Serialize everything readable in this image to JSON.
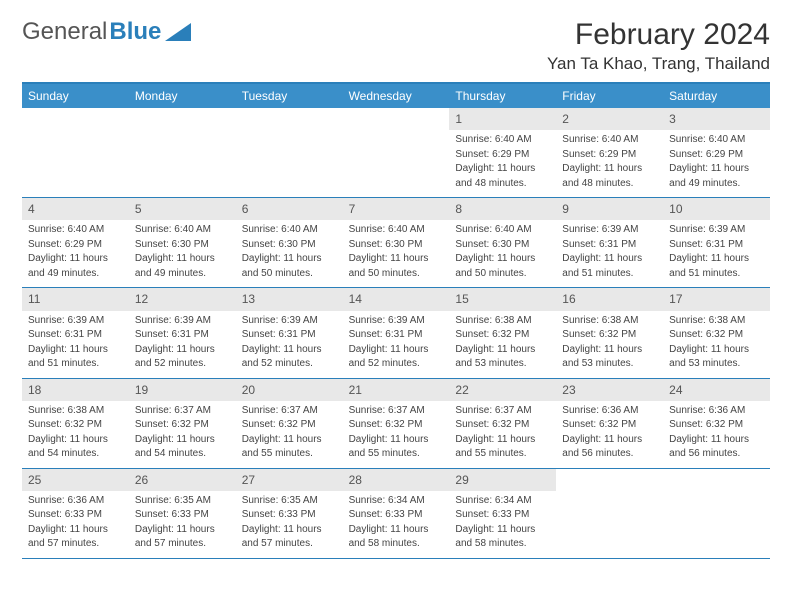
{
  "brand": {
    "part1": "General",
    "part2": "Blue"
  },
  "title": "February 2024",
  "location": "Yan Ta Khao, Trang, Thailand",
  "colors": {
    "header_bg": "#3a8fc9",
    "border": "#2a7fba",
    "daynum_bg": "#e8e8e8",
    "text": "#333333",
    "brand_gray": "#555555",
    "brand_blue": "#2a7fba"
  },
  "weekdays": [
    "Sunday",
    "Monday",
    "Tuesday",
    "Wednesday",
    "Thursday",
    "Friday",
    "Saturday"
  ],
  "weeks": [
    [
      {
        "day": "",
        "sunrise": "",
        "sunset": "",
        "daylight1": "",
        "daylight2": ""
      },
      {
        "day": "",
        "sunrise": "",
        "sunset": "",
        "daylight1": "",
        "daylight2": ""
      },
      {
        "day": "",
        "sunrise": "",
        "sunset": "",
        "daylight1": "",
        "daylight2": ""
      },
      {
        "day": "",
        "sunrise": "",
        "sunset": "",
        "daylight1": "",
        "daylight2": ""
      },
      {
        "day": "1",
        "sunrise": "Sunrise: 6:40 AM",
        "sunset": "Sunset: 6:29 PM",
        "daylight1": "Daylight: 11 hours",
        "daylight2": "and 48 minutes."
      },
      {
        "day": "2",
        "sunrise": "Sunrise: 6:40 AM",
        "sunset": "Sunset: 6:29 PM",
        "daylight1": "Daylight: 11 hours",
        "daylight2": "and 48 minutes."
      },
      {
        "day": "3",
        "sunrise": "Sunrise: 6:40 AM",
        "sunset": "Sunset: 6:29 PM",
        "daylight1": "Daylight: 11 hours",
        "daylight2": "and 49 minutes."
      }
    ],
    [
      {
        "day": "4",
        "sunrise": "Sunrise: 6:40 AM",
        "sunset": "Sunset: 6:29 PM",
        "daylight1": "Daylight: 11 hours",
        "daylight2": "and 49 minutes."
      },
      {
        "day": "5",
        "sunrise": "Sunrise: 6:40 AM",
        "sunset": "Sunset: 6:30 PM",
        "daylight1": "Daylight: 11 hours",
        "daylight2": "and 49 minutes."
      },
      {
        "day": "6",
        "sunrise": "Sunrise: 6:40 AM",
        "sunset": "Sunset: 6:30 PM",
        "daylight1": "Daylight: 11 hours",
        "daylight2": "and 50 minutes."
      },
      {
        "day": "7",
        "sunrise": "Sunrise: 6:40 AM",
        "sunset": "Sunset: 6:30 PM",
        "daylight1": "Daylight: 11 hours",
        "daylight2": "and 50 minutes."
      },
      {
        "day": "8",
        "sunrise": "Sunrise: 6:40 AM",
        "sunset": "Sunset: 6:30 PM",
        "daylight1": "Daylight: 11 hours",
        "daylight2": "and 50 minutes."
      },
      {
        "day": "9",
        "sunrise": "Sunrise: 6:39 AM",
        "sunset": "Sunset: 6:31 PM",
        "daylight1": "Daylight: 11 hours",
        "daylight2": "and 51 minutes."
      },
      {
        "day": "10",
        "sunrise": "Sunrise: 6:39 AM",
        "sunset": "Sunset: 6:31 PM",
        "daylight1": "Daylight: 11 hours",
        "daylight2": "and 51 minutes."
      }
    ],
    [
      {
        "day": "11",
        "sunrise": "Sunrise: 6:39 AM",
        "sunset": "Sunset: 6:31 PM",
        "daylight1": "Daylight: 11 hours",
        "daylight2": "and 51 minutes."
      },
      {
        "day": "12",
        "sunrise": "Sunrise: 6:39 AM",
        "sunset": "Sunset: 6:31 PM",
        "daylight1": "Daylight: 11 hours",
        "daylight2": "and 52 minutes."
      },
      {
        "day": "13",
        "sunrise": "Sunrise: 6:39 AM",
        "sunset": "Sunset: 6:31 PM",
        "daylight1": "Daylight: 11 hours",
        "daylight2": "and 52 minutes."
      },
      {
        "day": "14",
        "sunrise": "Sunrise: 6:39 AM",
        "sunset": "Sunset: 6:31 PM",
        "daylight1": "Daylight: 11 hours",
        "daylight2": "and 52 minutes."
      },
      {
        "day": "15",
        "sunrise": "Sunrise: 6:38 AM",
        "sunset": "Sunset: 6:32 PM",
        "daylight1": "Daylight: 11 hours",
        "daylight2": "and 53 minutes."
      },
      {
        "day": "16",
        "sunrise": "Sunrise: 6:38 AM",
        "sunset": "Sunset: 6:32 PM",
        "daylight1": "Daylight: 11 hours",
        "daylight2": "and 53 minutes."
      },
      {
        "day": "17",
        "sunrise": "Sunrise: 6:38 AM",
        "sunset": "Sunset: 6:32 PM",
        "daylight1": "Daylight: 11 hours",
        "daylight2": "and 53 minutes."
      }
    ],
    [
      {
        "day": "18",
        "sunrise": "Sunrise: 6:38 AM",
        "sunset": "Sunset: 6:32 PM",
        "daylight1": "Daylight: 11 hours",
        "daylight2": "and 54 minutes."
      },
      {
        "day": "19",
        "sunrise": "Sunrise: 6:37 AM",
        "sunset": "Sunset: 6:32 PM",
        "daylight1": "Daylight: 11 hours",
        "daylight2": "and 54 minutes."
      },
      {
        "day": "20",
        "sunrise": "Sunrise: 6:37 AM",
        "sunset": "Sunset: 6:32 PM",
        "daylight1": "Daylight: 11 hours",
        "daylight2": "and 55 minutes."
      },
      {
        "day": "21",
        "sunrise": "Sunrise: 6:37 AM",
        "sunset": "Sunset: 6:32 PM",
        "daylight1": "Daylight: 11 hours",
        "daylight2": "and 55 minutes."
      },
      {
        "day": "22",
        "sunrise": "Sunrise: 6:37 AM",
        "sunset": "Sunset: 6:32 PM",
        "daylight1": "Daylight: 11 hours",
        "daylight2": "and 55 minutes."
      },
      {
        "day": "23",
        "sunrise": "Sunrise: 6:36 AM",
        "sunset": "Sunset: 6:32 PM",
        "daylight1": "Daylight: 11 hours",
        "daylight2": "and 56 minutes."
      },
      {
        "day": "24",
        "sunrise": "Sunrise: 6:36 AM",
        "sunset": "Sunset: 6:32 PM",
        "daylight1": "Daylight: 11 hours",
        "daylight2": "and 56 minutes."
      }
    ],
    [
      {
        "day": "25",
        "sunrise": "Sunrise: 6:36 AM",
        "sunset": "Sunset: 6:33 PM",
        "daylight1": "Daylight: 11 hours",
        "daylight2": "and 57 minutes."
      },
      {
        "day": "26",
        "sunrise": "Sunrise: 6:35 AM",
        "sunset": "Sunset: 6:33 PM",
        "daylight1": "Daylight: 11 hours",
        "daylight2": "and 57 minutes."
      },
      {
        "day": "27",
        "sunrise": "Sunrise: 6:35 AM",
        "sunset": "Sunset: 6:33 PM",
        "daylight1": "Daylight: 11 hours",
        "daylight2": "and 57 minutes."
      },
      {
        "day": "28",
        "sunrise": "Sunrise: 6:34 AM",
        "sunset": "Sunset: 6:33 PM",
        "daylight1": "Daylight: 11 hours",
        "daylight2": "and 58 minutes."
      },
      {
        "day": "29",
        "sunrise": "Sunrise: 6:34 AM",
        "sunset": "Sunset: 6:33 PM",
        "daylight1": "Daylight: 11 hours",
        "daylight2": "and 58 minutes."
      },
      {
        "day": "",
        "sunrise": "",
        "sunset": "",
        "daylight1": "",
        "daylight2": ""
      },
      {
        "day": "",
        "sunrise": "",
        "sunset": "",
        "daylight1": "",
        "daylight2": ""
      }
    ]
  ]
}
